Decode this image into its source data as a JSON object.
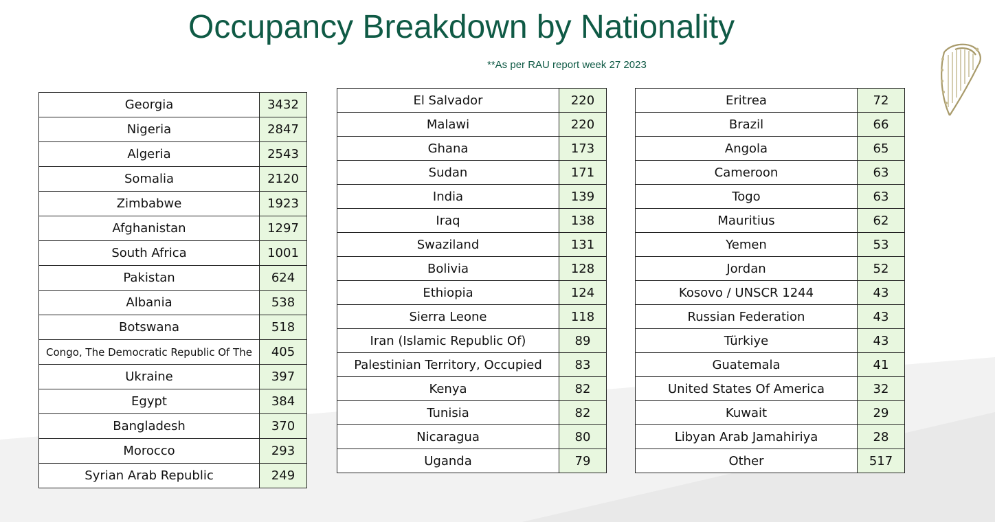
{
  "title": "Occupancy Breakdown by Nationality",
  "subtitle": "**As per RAU report week 27 2023",
  "colors": {
    "title": "#0f5a45",
    "count_cell": "#e8f7df",
    "background_shape": "#ececec"
  },
  "tables": [
    {
      "rows": [
        {
          "country": "Georgia",
          "count": "3432"
        },
        {
          "country": "Nigeria",
          "count": "2847"
        },
        {
          "country": "Algeria",
          "count": "2543"
        },
        {
          "country": "Somalia",
          "count": "2120"
        },
        {
          "country": "Zimbabwe",
          "count": "1923"
        },
        {
          "country": "Afghanistan",
          "count": "1297"
        },
        {
          "country": "South Africa",
          "count": "1001"
        },
        {
          "country": "Pakistan",
          "count": "624"
        },
        {
          "country": "Albania",
          "count": "538"
        },
        {
          "country": "Botswana",
          "count": "518"
        },
        {
          "country": "Congo, The Democratic Republic Of The",
          "count": "405"
        },
        {
          "country": "Ukraine",
          "count": "397"
        },
        {
          "country": "Egypt",
          "count": "384"
        },
        {
          "country": "Bangladesh",
          "count": "370"
        },
        {
          "country": "Morocco",
          "count": "293"
        },
        {
          "country": "Syrian Arab Republic",
          "count": "249"
        }
      ]
    },
    {
      "rows": [
        {
          "country": "El Salvador",
          "count": "220"
        },
        {
          "country": "Malawi",
          "count": "220"
        },
        {
          "country": "Ghana",
          "count": "173"
        },
        {
          "country": "Sudan",
          "count": "171"
        },
        {
          "country": "India",
          "count": "139"
        },
        {
          "country": "Iraq",
          "count": "138"
        },
        {
          "country": "Swaziland",
          "count": "131"
        },
        {
          "country": "Bolivia",
          "count": "128"
        },
        {
          "country": "Ethiopia",
          "count": "124"
        },
        {
          "country": "Sierra Leone",
          "count": "118"
        },
        {
          "country": "Iran (Islamic Republic Of)",
          "count": "89"
        },
        {
          "country": "Palestinian Territory, Occupied",
          "count": "83"
        },
        {
          "country": "Kenya",
          "count": "82"
        },
        {
          "country": "Tunisia",
          "count": "82"
        },
        {
          "country": "Nicaragua",
          "count": "80"
        },
        {
          "country": "Uganda",
          "count": "79"
        }
      ]
    },
    {
      "rows": [
        {
          "country": "Eritrea",
          "count": "72"
        },
        {
          "country": "Brazil",
          "count": "66"
        },
        {
          "country": "Angola",
          "count": "65"
        },
        {
          "country": "Cameroon",
          "count": "63"
        },
        {
          "country": "Togo",
          "count": "63"
        },
        {
          "country": "Mauritius",
          "count": "62"
        },
        {
          "country": "Yemen",
          "count": "53"
        },
        {
          "country": "Jordan",
          "count": "52"
        },
        {
          "country": "Kosovo / UNSCR 1244",
          "count": "43"
        },
        {
          "country": "Russian Federation",
          "count": "43"
        },
        {
          "country": "Türkiye",
          "count": "43"
        },
        {
          "country": "Guatemala",
          "count": "41"
        },
        {
          "country": "United States Of America",
          "count": "32"
        },
        {
          "country": "Kuwait",
          "count": "29"
        },
        {
          "country": "Libyan Arab Jamahiriya",
          "count": "28"
        },
        {
          "country": "Other",
          "count": "517"
        }
      ]
    }
  ]
}
